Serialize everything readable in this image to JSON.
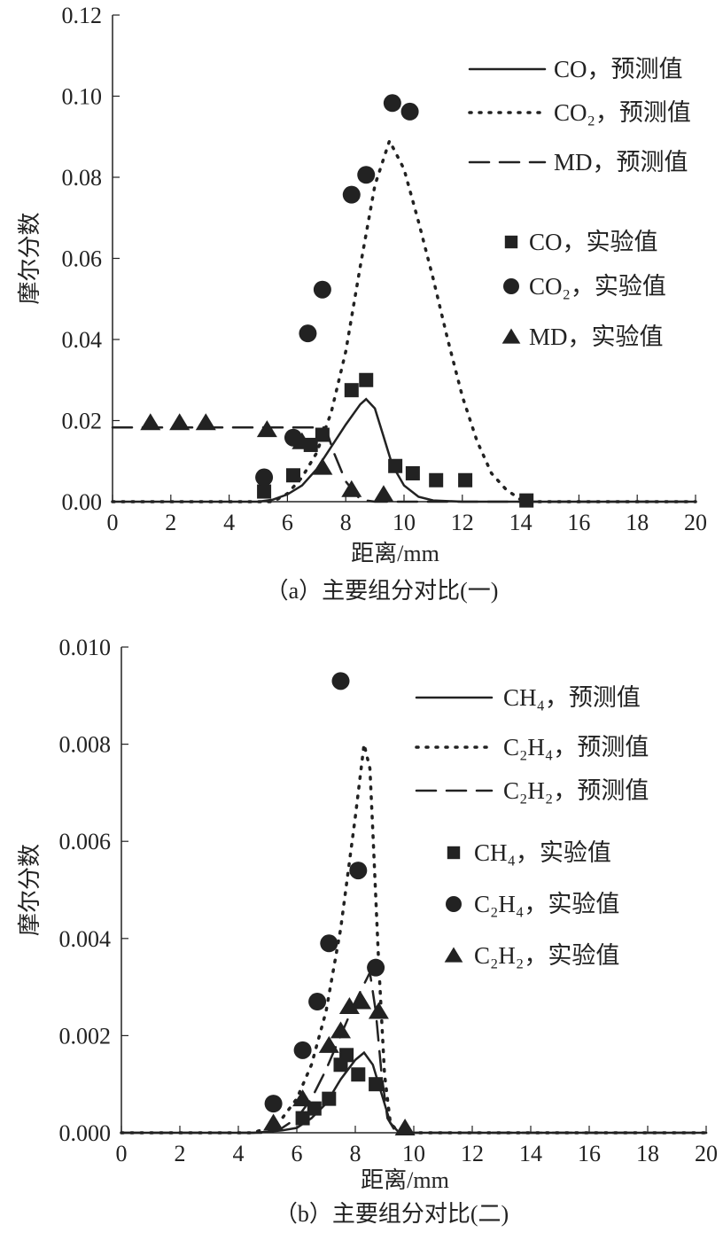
{
  "chart_data": [
    {
      "type": "line",
      "caption": "（a）主要组分对比(一)",
      "xlabel": "距离/mm",
      "ylabel": "摩尔分数",
      "xlim": [
        0,
        20
      ],
      "ylim": [
        0,
        0.12
      ],
      "xticks": [
        "0",
        "2",
        "4",
        "6",
        "8",
        "10",
        "12",
        "14",
        "16",
        "18",
        "20"
      ],
      "yticks": [
        "0.00",
        "0.02",
        "0.04",
        "0.06",
        "0.08",
        "0.10",
        "0.12"
      ],
      "grid": false,
      "legend_position": "top-right",
      "series": [
        {
          "name": "CO，预测值",
          "kind": "line",
          "style": "solid",
          "points": [
            [
              0,
              0
            ],
            [
              5,
              0
            ],
            [
              5.5,
              0.0005
            ],
            [
              6,
              0.0018
            ],
            [
              6.5,
              0.004
            ],
            [
              7,
              0.008
            ],
            [
              7.5,
              0.0135
            ],
            [
              8,
              0.019
            ],
            [
              8.5,
              0.024
            ],
            [
              8.7,
              0.0253
            ],
            [
              9,
              0.023
            ],
            [
              9.3,
              0.016
            ],
            [
              9.6,
              0.009
            ],
            [
              10,
              0.004
            ],
            [
              10.5,
              0.0012
            ],
            [
              11,
              0.0003
            ],
            [
              12,
              0
            ],
            [
              20,
              0
            ]
          ]
        },
        {
          "name": "CO₂，预测值",
          "kind": "line",
          "style": "dotted",
          "points": [
            [
              0,
              0
            ],
            [
              5.5,
              0
            ],
            [
              6,
              0.002
            ],
            [
              6.5,
              0.006
            ],
            [
              7,
              0.012
            ],
            [
              7.5,
              0.022
            ],
            [
              8,
              0.037
            ],
            [
              8.5,
              0.058
            ],
            [
              9,
              0.078
            ],
            [
              9.5,
              0.089
            ],
            [
              10,
              0.082
            ],
            [
              10.5,
              0.069
            ],
            [
              11,
              0.055
            ],
            [
              11.5,
              0.04
            ],
            [
              12,
              0.026
            ],
            [
              12.5,
              0.015
            ],
            [
              13,
              0.007
            ],
            [
              13.5,
              0.003
            ],
            [
              14,
              0.0005
            ],
            [
              14.5,
              0
            ],
            [
              20,
              0
            ]
          ]
        },
        {
          "name": "MD，预测值",
          "kind": "line",
          "style": "dashed",
          "points": [
            [
              0,
              0.0183
            ],
            [
              7.3,
              0.0183
            ],
            [
              7.6,
              0.012
            ],
            [
              8,
              0.005
            ],
            [
              8.5,
              0.0005
            ],
            [
              9,
              0
            ],
            [
              20,
              0
            ]
          ]
        },
        {
          "name": "CO，实验值",
          "kind": "marker",
          "marker": "square",
          "points": [
            [
              5.2,
              0.0025
            ],
            [
              6.2,
              0.0065
            ],
            [
              6.8,
              0.014
            ],
            [
              7.2,
              0.0165
            ],
            [
              8.2,
              0.0275
            ],
            [
              8.7,
              0.03
            ],
            [
              9.7,
              0.0088
            ],
            [
              10.3,
              0.007
            ],
            [
              11.1,
              0.0053
            ],
            [
              12.1,
              0.0053
            ],
            [
              14.2,
              0.0003
            ]
          ]
        },
        {
          "name": "CO₂，实验值",
          "kind": "marker",
          "marker": "circle",
          "points": [
            [
              5.2,
              0.006
            ],
            [
              6.2,
              0.0158
            ],
            [
              6.7,
              0.0415
            ],
            [
              7.2,
              0.0523
            ],
            [
              8.2,
              0.0757
            ],
            [
              8.7,
              0.0806
            ],
            [
              9.6,
              0.0983
            ],
            [
              10.2,
              0.0962
            ]
          ]
        },
        {
          "name": "MD，实验值",
          "kind": "marker",
          "marker": "triangle",
          "points": [
            [
              1.3,
              0.0195
            ],
            [
              2.3,
              0.0195
            ],
            [
              3.2,
              0.0195
            ],
            [
              5.3,
              0.0178
            ],
            [
              6.5,
              0.0148
            ],
            [
              7.2,
              0.0085
            ],
            [
              8.2,
              0.003
            ],
            [
              9.3,
              0.0018
            ]
          ]
        }
      ]
    },
    {
      "type": "line",
      "caption": "（b）主要组分对比(二)",
      "xlabel": "距离/mm",
      "ylabel": "摩尔分数",
      "xlim": [
        0,
        20
      ],
      "ylim": [
        0,
        0.01
      ],
      "xticks": [
        "0",
        "2",
        "4",
        "6",
        "8",
        "10",
        "12",
        "14",
        "16",
        "18",
        "20"
      ],
      "yticks": [
        "0.000",
        "0.002",
        "0.004",
        "0.006",
        "0.008",
        "0.010"
      ],
      "grid": false,
      "legend_position": "top-right",
      "series": [
        {
          "name": "CH₄，预测值",
          "kind": "line",
          "style": "solid",
          "points": [
            [
              0,
              0
            ],
            [
              4.5,
              0
            ],
            [
              5,
              2e-05
            ],
            [
              5.5,
              5e-05
            ],
            [
              6,
              0.0001
            ],
            [
              6.5,
              0.0003
            ],
            [
              7,
              0.0006
            ],
            [
              7.5,
              0.0011
            ],
            [
              8,
              0.0015
            ],
            [
              8.3,
              0.00165
            ],
            [
              8.6,
              0.0014
            ],
            [
              8.9,
              0.0008
            ],
            [
              9.2,
              0.0002
            ],
            [
              9.5,
              0
            ],
            [
              20,
              0
            ]
          ]
        },
        {
          "name": "C₂H₄，预测值",
          "kind": "line",
          "style": "dotted",
          "points": [
            [
              0,
              0
            ],
            [
              4.5,
              0
            ],
            [
              5,
              0.0001
            ],
            [
              5.5,
              0.0003
            ],
            [
              6,
              0.0007
            ],
            [
              6.5,
              0.0014
            ],
            [
              7,
              0.0025
            ],
            [
              7.5,
              0.0042
            ],
            [
              8,
              0.0065
            ],
            [
              8.3,
              0.008
            ],
            [
              8.5,
              0.0075
            ],
            [
              8.6,
              0.0062
            ],
            [
              8.8,
              0.0035
            ],
            [
              9,
              0.0012
            ],
            [
              9.2,
              0.0002
            ],
            [
              9.5,
              0
            ],
            [
              20,
              0
            ]
          ]
        },
        {
          "name": "C₂H₂，预测值",
          "kind": "line",
          "style": "dashed",
          "points": [
            [
              0,
              0
            ],
            [
              5,
              0
            ],
            [
              5.5,
              0.0001
            ],
            [
              6,
              0.0003
            ],
            [
              6.5,
              0.0007
            ],
            [
              7,
              0.0013
            ],
            [
              7.5,
              0.002
            ],
            [
              8,
              0.0027
            ],
            [
              8.5,
              0.0033
            ],
            [
              8.7,
              0.0025
            ],
            [
              8.9,
              0.0012
            ],
            [
              9.1,
              0.0003
            ],
            [
              9.4,
              0
            ],
            [
              20,
              0
            ]
          ]
        },
        {
          "name": "CH₄，实验值",
          "kind": "marker",
          "marker": "square",
          "points": [
            [
              6.2,
              0.0003
            ],
            [
              6.6,
              0.0005
            ],
            [
              7.1,
              0.0007
            ],
            [
              7.5,
              0.0014
            ],
            [
              7.7,
              0.0016
            ],
            [
              8.1,
              0.0012
            ],
            [
              8.7,
              0.001
            ]
          ]
        },
        {
          "name": "C₂H₄，实验值",
          "kind": "marker",
          "marker": "circle",
          "points": [
            [
              5.2,
              0.0006
            ],
            [
              6.2,
              0.0017
            ],
            [
              6.7,
              0.0027
            ],
            [
              7.1,
              0.0039
            ],
            [
              7.5,
              0.0093
            ],
            [
              8.1,
              0.0054
            ],
            [
              8.7,
              0.0034
            ]
          ]
        },
        {
          "name": "C₂H₂，实验值",
          "kind": "marker",
          "marker": "triangle",
          "points": [
            [
              5.2,
              0.0002
            ],
            [
              6.2,
              0.0007
            ],
            [
              7.1,
              0.0018
            ],
            [
              7.5,
              0.0021
            ],
            [
              7.8,
              0.0026
            ],
            [
              8.2,
              0.0027
            ],
            [
              8.8,
              0.0025
            ],
            [
              9.7,
              0.0001
            ]
          ]
        }
      ]
    }
  ]
}
